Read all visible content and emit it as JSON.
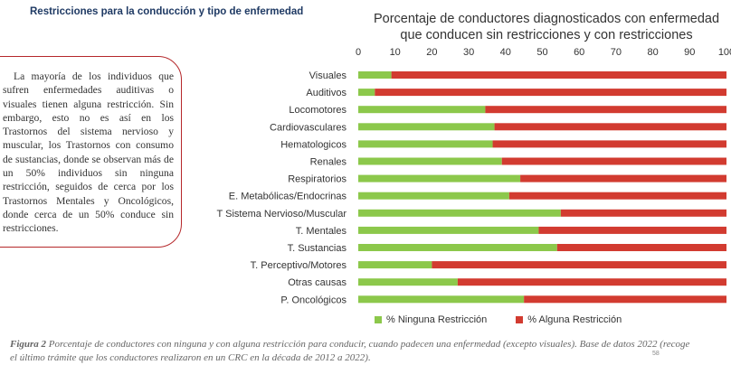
{
  "header": {
    "title": "Restricciones para la conducción y tipo de enfermedad"
  },
  "note": {
    "text": "La mayoría de los individuos que sufren enfermedades auditivas o visuales tienen alguna restricción. Sin embargo, esto no es así en los Trastornos del sistema nervioso y muscular, los Trastornos con consumo de sustancias, donde se observan más de un 50% individuos sin ninguna restricción, seguidos de cerca por los Trastornos Mentales y Oncológicos, donde cerca de un 50% conduce sin restricciones."
  },
  "caption": {
    "figure_label": "Figura 2",
    "text": "Porcentaje de conductores con ninguna y con alguna restricción para conducir, cuando padecen una enfermedad (excepto visuales). Base de datos 2022 (recoge el último trámite que los conductores realizaron en un CRC en la década de 2012 a 2022).",
    "page_number": "58"
  },
  "chart_data": {
    "type": "bar",
    "orientation": "horizontal",
    "stacked": true,
    "title_lines": [
      "Porcentaje de conductores diagnosticados con enfermedad",
      "que conducen  sin restricciones y con restricciones"
    ],
    "xlim": [
      0,
      100
    ],
    "x_ticks": [
      "0",
      "10",
      "20",
      "30",
      "40",
      "50",
      "60",
      "70",
      "80",
      "90",
      "100"
    ],
    "axis_position": "top",
    "grid": false,
    "legend_position": "bottom",
    "categories": [
      "Visuales",
      "Auditivos",
      "Locomotores",
      "Cardiovasculares",
      "Hematologicos",
      "Renales",
      "Respiratorios",
      "E. Metabólicas/Endocrinas",
      "T Sistema Nervioso/Muscular",
      "T.  Mentales",
      "T. Sustancias",
      "T. Perceptivo/Motores",
      "Otras causas",
      "P. Oncológicos"
    ],
    "series": [
      {
        "name": "% Ninguna Restricción",
        "color": "#8cc84b",
        "values": [
          9,
          4.5,
          34.5,
          37,
          36.5,
          39,
          44,
          41,
          55,
          49,
          54,
          20,
          27,
          45
        ]
      },
      {
        "name": "% Alguna Restricción",
        "color": "#d23b30",
        "values": [
          91,
          95.5,
          65.5,
          63,
          63.5,
          61,
          56,
          59,
          45,
          51,
          46,
          80,
          73,
          55
        ]
      }
    ]
  }
}
